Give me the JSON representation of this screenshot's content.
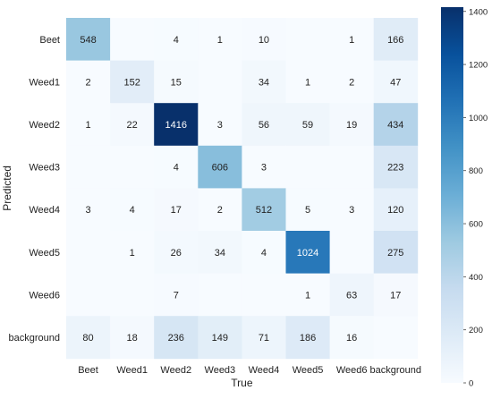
{
  "chart_data": {
    "type": "heatmap",
    "title": "",
    "xlabel": "True",
    "ylabel": "Predicted",
    "x_categories": [
      "Beet",
      "Weed1",
      "Weed2",
      "Weed3",
      "Weed4",
      "Weed5",
      "Weed6",
      "background"
    ],
    "y_categories": [
      "Beet",
      "Weed1",
      "Weed2",
      "Weed3",
      "Weed4",
      "Weed5",
      "Weed6",
      "background"
    ],
    "values": [
      [
        548,
        null,
        4,
        1,
        10,
        null,
        1,
        166
      ],
      [
        2,
        152,
        15,
        null,
        34,
        1,
        2,
        47
      ],
      [
        1,
        22,
        1416,
        3,
        56,
        59,
        19,
        434
      ],
      [
        null,
        null,
        4,
        606,
        3,
        null,
        null,
        223
      ],
      [
        3,
        4,
        17,
        2,
        512,
        5,
        3,
        120
      ],
      [
        null,
        1,
        26,
        34,
        4,
        1024,
        null,
        275
      ],
      [
        null,
        null,
        7,
        null,
        null,
        1,
        63,
        17
      ],
      [
        80,
        18,
        236,
        149,
        71,
        186,
        16,
        null
      ]
    ],
    "colorbar": {
      "min": 0,
      "max": 1416,
      "ticks": [
        0,
        200,
        400,
        600,
        800,
        1000,
        1200,
        1400
      ],
      "colormap": "Blues",
      "colors": [
        "#f7fbff",
        "#deebf7",
        "#c6dbef",
        "#9ecae1",
        "#6baed6",
        "#4292c6",
        "#2171b5",
        "#08519c",
        "#08306b"
      ]
    },
    "grid": false
  }
}
